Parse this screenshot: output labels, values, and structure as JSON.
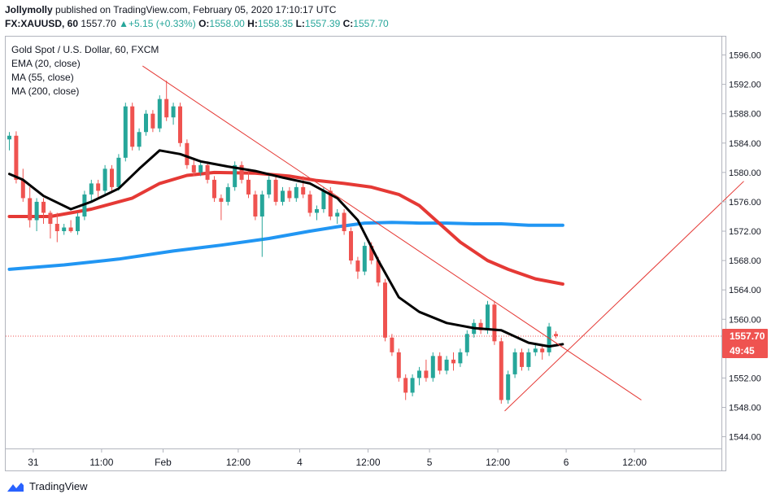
{
  "header": {
    "author": "Jollymolly",
    "published_text": "published on TradingView.com, February 05, 2020 17:10:17 UTC",
    "symbol": "FX:XAUUSD, 60",
    "last": "1557.70",
    "change": "+5.15 (+0.33%)",
    "open_label": "O:",
    "open": "1558.00",
    "high_label": "H:",
    "high": "1558.35",
    "low_label": "L:",
    "low": "1557.39",
    "close_label": "C:",
    "close": "1557.70"
  },
  "legend": {
    "title": "Gold Spot / U.S. Dollar, 60, FXCM",
    "ema": "EMA (20, close)",
    "ma55": "MA (55, close)",
    "ma200": "MA (200, close)"
  },
  "footer": {
    "brand": "TradingView"
  },
  "colors": {
    "up": "#26a69a",
    "down": "#ef5350",
    "ema": "#000000",
    "ma55": "#e53935",
    "ma200": "#2196f3",
    "trend": "#e53935",
    "price_tag": "#ef5350"
  },
  "chart_data": {
    "type": "candlestick",
    "title": "Gold Spot / U.S. Dollar, 60, FXCM",
    "ylim": [
      1542.4,
      1598.5
    ],
    "y_ticks": [
      "1596.00",
      "1592.00",
      "1588.00",
      "1584.00",
      "1580.00",
      "1576.00",
      "1572.00",
      "1568.00",
      "1564.00",
      "1560.00",
      "1556.00",
      "1552.00",
      "1548.00",
      "1544.00"
    ],
    "x_labels": [
      {
        "label": "31",
        "bar": 3.5
      },
      {
        "label": "11:00",
        "bar": 13.5
      },
      {
        "label": "Feb",
        "bar": 22.5
      },
      {
        "label": "12:00",
        "bar": 33.5
      },
      {
        "label": "4",
        "bar": 42.5
      },
      {
        "label": "12:00",
        "bar": 52.5
      },
      {
        "label": "5",
        "bar": 61.5
      },
      {
        "label": "12:00",
        "bar": 71.5
      },
      {
        "label": "6",
        "bar": 81.5
      },
      {
        "label": "12:00",
        "bar": 91.5
      }
    ],
    "last_price": "1557.70",
    "countdown": "49:45",
    "candles": [
      [
        1584.5,
        1585.5,
        1583.0,
        1585.0
      ],
      [
        1585.0,
        1585.6,
        1578.5,
        1579.0
      ],
      [
        1579.0,
        1580.5,
        1576.0,
        1576.5
      ],
      [
        1576.5,
        1578.0,
        1572.5,
        1573.5
      ],
      [
        1573.5,
        1576.5,
        1572.0,
        1576.0
      ],
      [
        1576.0,
        1576.5,
        1573.0,
        1574.5
      ],
      [
        1574.5,
        1574.8,
        1571.0,
        1573.0
      ],
      [
        1573.0,
        1574.5,
        1570.5,
        1572.0
      ],
      [
        1572.0,
        1573.0,
        1571.5,
        1572.5
      ],
      [
        1572.5,
        1573.5,
        1571.8,
        1572.0
      ],
      [
        1572.0,
        1574.5,
        1571.5,
        1574.0
      ],
      [
        1574.0,
        1577.5,
        1573.5,
        1577.0
      ],
      [
        1577.0,
        1579.0,
        1576.0,
        1578.5
      ],
      [
        1578.5,
        1579.0,
        1576.5,
        1577.5
      ],
      [
        1577.5,
        1581.0,
        1577.0,
        1580.5
      ],
      [
        1580.5,
        1581.0,
        1577.5,
        1578.0
      ],
      [
        1578.0,
        1582.5,
        1577.5,
        1582.0
      ],
      [
        1582.0,
        1589.5,
        1581.5,
        1589.0
      ],
      [
        1589.0,
        1589.5,
        1583.0,
        1583.5
      ],
      [
        1583.5,
        1586.0,
        1583.0,
        1585.5
      ],
      [
        1585.5,
        1588.5,
        1585.0,
        1588.0
      ],
      [
        1588.0,
        1588.5,
        1585.5,
        1586.0
      ],
      [
        1586.0,
        1590.5,
        1585.5,
        1590.0
      ],
      [
        1590.0,
        1592.5,
        1587.0,
        1587.5
      ],
      [
        1587.5,
        1589.5,
        1586.5,
        1589.0
      ],
      [
        1589.0,
        1589.5,
        1583.5,
        1584.0
      ],
      [
        1584.0,
        1584.5,
        1580.5,
        1581.0
      ],
      [
        1581.0,
        1582.0,
        1579.5,
        1580.0
      ],
      [
        1580.0,
        1581.5,
        1579.5,
        1581.0
      ],
      [
        1581.0,
        1581.5,
        1578.5,
        1579.0
      ],
      [
        1579.0,
        1579.5,
        1576.0,
        1576.5
      ],
      [
        1576.5,
        1577.0,
        1573.5,
        1576.0
      ],
      [
        1576.0,
        1578.5,
        1575.5,
        1578.0
      ],
      [
        1578.0,
        1581.5,
        1577.5,
        1581.0
      ],
      [
        1581.0,
        1581.5,
        1578.5,
        1579.0
      ],
      [
        1579.0,
        1580.5,
        1576.5,
        1577.0
      ],
      [
        1577.0,
        1577.5,
        1573.5,
        1574.0
      ],
      [
        1574.0,
        1577.5,
        1568.5,
        1577.0
      ],
      [
        1577.0,
        1579.5,
        1576.5,
        1579.0
      ],
      [
        1579.0,
        1579.5,
        1575.5,
        1576.0
      ],
      [
        1576.0,
        1578.0,
        1575.5,
        1577.5
      ],
      [
        1577.5,
        1578.0,
        1576.0,
        1576.5
      ],
      [
        1576.5,
        1578.5,
        1576.0,
        1578.0
      ],
      [
        1578.0,
        1579.5,
        1576.5,
        1577.0
      ],
      [
        1577.0,
        1577.5,
        1574.0,
        1574.5
      ],
      [
        1574.5,
        1575.5,
        1573.5,
        1575.0
      ],
      [
        1575.0,
        1578.0,
        1574.5,
        1577.5
      ],
      [
        1577.5,
        1578.0,
        1573.5,
        1574.0
      ],
      [
        1574.0,
        1575.0,
        1573.0,
        1574.5
      ],
      [
        1574.5,
        1575.0,
        1571.5,
        1572.0
      ],
      [
        1572.0,
        1572.5,
        1567.5,
        1568.0
      ],
      [
        1568.0,
        1568.5,
        1565.5,
        1566.5
      ],
      [
        1566.5,
        1570.5,
        1566.0,
        1570.0
      ],
      [
        1570.0,
        1570.5,
        1567.5,
        1568.0
      ],
      [
        1568.0,
        1568.5,
        1564.5,
        1565.0
      ],
      [
        1565.0,
        1565.5,
        1557.0,
        1557.5
      ],
      [
        1557.5,
        1558.0,
        1555.0,
        1555.5
      ],
      [
        1555.5,
        1556.0,
        1551.5,
        1552.0
      ],
      [
        1552.0,
        1552.5,
        1549.0,
        1550.0
      ],
      [
        1550.0,
        1552.5,
        1549.5,
        1552.0
      ],
      [
        1552.0,
        1553.5,
        1551.0,
        1553.0
      ],
      [
        1553.0,
        1554.5,
        1551.5,
        1552.0
      ],
      [
        1552.0,
        1555.5,
        1551.5,
        1555.0
      ],
      [
        1555.0,
        1555.5,
        1552.5,
        1553.0
      ],
      [
        1553.0,
        1555.0,
        1552.5,
        1554.5
      ],
      [
        1554.5,
        1555.5,
        1553.0,
        1554.0
      ],
      [
        1554.0,
        1556.0,
        1553.5,
        1555.5
      ],
      [
        1555.5,
        1558.5,
        1555.0,
        1558.0
      ],
      [
        1558.0,
        1560.0,
        1557.5,
        1559.5
      ],
      [
        1559.5,
        1560.0,
        1558.0,
        1558.5
      ],
      [
        1558.5,
        1562.5,
        1558.0,
        1562.0
      ],
      [
        1562.0,
        1562.5,
        1556.5,
        1557.0
      ],
      [
        1557.0,
        1557.5,
        1548.5,
        1549.0
      ],
      [
        1549.0,
        1553.0,
        1548.5,
        1552.5
      ],
      [
        1552.5,
        1556.0,
        1552.0,
        1555.5
      ],
      [
        1555.5,
        1556.0,
        1553.0,
        1553.5
      ],
      [
        1553.5,
        1556.0,
        1553.0,
        1555.5
      ],
      [
        1555.5,
        1556.5,
        1555.0,
        1556.0
      ],
      [
        1556.0,
        1556.5,
        1554.5,
        1555.5
      ],
      [
        1555.5,
        1559.5,
        1555.0,
        1559.0
      ],
      [
        1558.0,
        1558.35,
        1557.39,
        1557.7
      ]
    ],
    "ema20": [
      [
        0,
        1579.8
      ],
      [
        2,
        1579.0
      ],
      [
        5,
        1576.8
      ],
      [
        9,
        1575.0
      ],
      [
        12,
        1576.0
      ],
      [
        16,
        1577.8
      ],
      [
        19,
        1580.5
      ],
      [
        22,
        1583.0
      ],
      [
        25,
        1582.5
      ],
      [
        28,
        1581.5
      ],
      [
        32,
        1580.8
      ],
      [
        36,
        1580.2
      ],
      [
        40,
        1579.3
      ],
      [
        44,
        1578.5
      ],
      [
        48,
        1576.5
      ],
      [
        51,
        1573.5
      ],
      [
        54,
        1568.0
      ],
      [
        57,
        1563.0
      ],
      [
        60,
        1561.0
      ],
      [
        64,
        1559.5
      ],
      [
        68,
        1558.8
      ],
      [
        72,
        1558.5
      ],
      [
        76,
        1556.8
      ],
      [
        79,
        1556.3
      ],
      [
        81,
        1556.6
      ]
    ],
    "ma55": [
      [
        0,
        1574.0
      ],
      [
        6,
        1574.0
      ],
      [
        12,
        1575.0
      ],
      [
        18,
        1576.5
      ],
      [
        22,
        1578.5
      ],
      [
        26,
        1579.6
      ],
      [
        30,
        1580.0
      ],
      [
        36,
        1579.9
      ],
      [
        41,
        1579.5
      ],
      [
        45,
        1578.9
      ],
      [
        49,
        1578.5
      ],
      [
        53,
        1578.0
      ],
      [
        57,
        1577.0
      ],
      [
        60,
        1575.5
      ],
      [
        63,
        1573.0
      ],
      [
        66,
        1570.5
      ],
      [
        70,
        1568.0
      ],
      [
        73,
        1566.8
      ],
      [
        77,
        1565.5
      ],
      [
        81,
        1564.8
      ]
    ],
    "ma200": [
      [
        0,
        1566.8
      ],
      [
        8,
        1567.4
      ],
      [
        16,
        1568.2
      ],
      [
        24,
        1569.3
      ],
      [
        31,
        1570.1
      ],
      [
        38,
        1571.0
      ],
      [
        44,
        1572.0
      ],
      [
        48,
        1572.6
      ],
      [
        52,
        1573.1
      ],
      [
        56,
        1573.2
      ],
      [
        60,
        1573.1
      ],
      [
        64,
        1573.1
      ],
      [
        68,
        1573.0
      ],
      [
        72,
        1573.0
      ],
      [
        76,
        1572.8
      ],
      [
        81,
        1572.8
      ]
    ],
    "trendlines": [
      {
        "from": [
          19.5,
          1594.5
        ],
        "to": [
          92.5,
          1549.0
        ]
      },
      {
        "from": [
          72.5,
          1547.5
        ],
        "to": [
          107.5,
          1578.8
        ]
      }
    ]
  }
}
